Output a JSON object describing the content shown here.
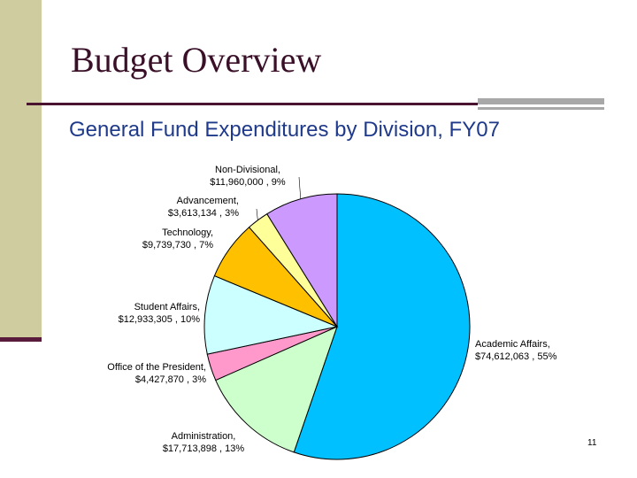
{
  "slide": {
    "title": "Budget Overview",
    "subtitle": "General Fund Expenditures by Division, FY07",
    "page_number": "11"
  },
  "colors": {
    "sidebar": "#cfcda0",
    "title_text": "#3a0f28",
    "subtitle_text": "#1f3a8a"
  },
  "chart_data": {
    "type": "pie",
    "start_angle_deg": 0,
    "direction": "clockwise",
    "slices": [
      {
        "label": "Academic Affairs,",
        "amount": "$74,612,063",
        "percent": "55%",
        "value": 74612063,
        "color": "#00c0ff"
      },
      {
        "label": "Administration,",
        "amount": "$17,713,898",
        "percent": "13%",
        "value": 17713898,
        "color": "#ccffcc"
      },
      {
        "label": "Office of the President,",
        "amount": "$4,427,870",
        "percent": "3%",
        "value": 4427870,
        "color": "#ff99cc"
      },
      {
        "label": "Student Affairs,",
        "amount": "$12,933,305",
        "percent": "10%",
        "value": 12933305,
        "color": "#ccffff"
      },
      {
        "label": "Technology,",
        "amount": "$9,739,730",
        "percent": "7%",
        "value": 9739730,
        "color": "#ffc000"
      },
      {
        "label": "Advancement,",
        "amount": "$3,613,134",
        "percent": "3%",
        "value": 3613134,
        "color": "#ffff99"
      },
      {
        "label": "Non-Divisional,",
        "amount": "$11,960,000",
        "percent": "9%",
        "value": 11960000,
        "color": "#cc99ff"
      }
    ]
  }
}
